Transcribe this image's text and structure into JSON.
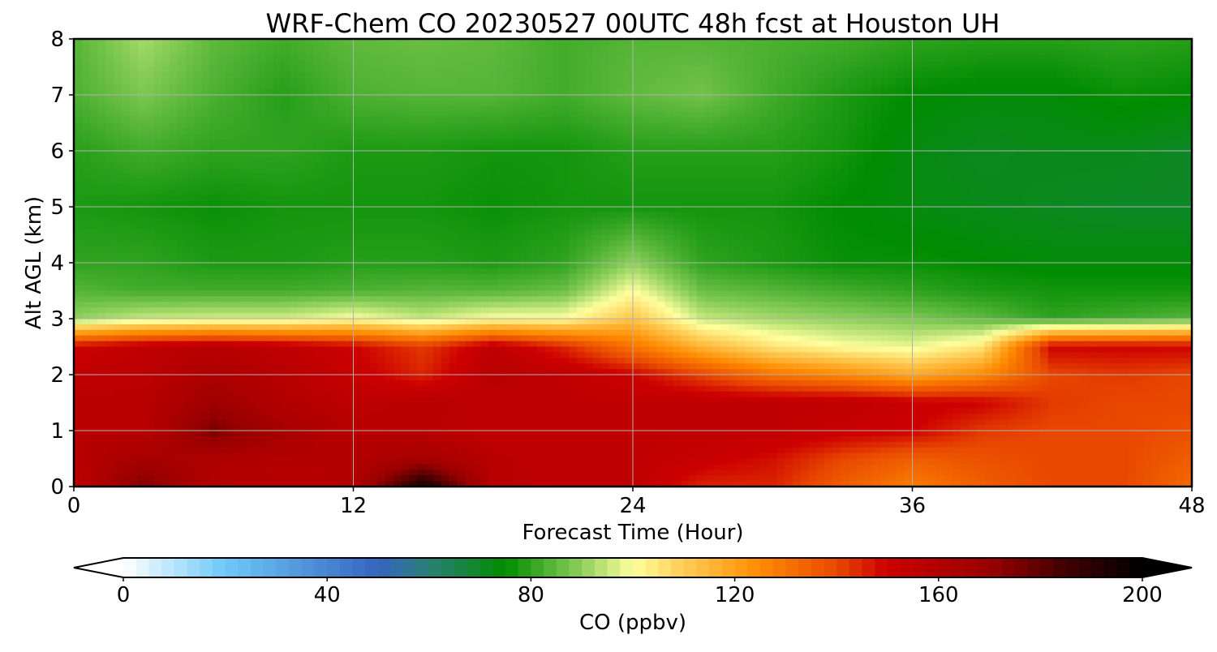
{
  "chart_data": {
    "type": "heatmap",
    "title": "WRF-Chem CO  20230527 00UTC 48h fcst at Houston UH",
    "xlabel": "Forecast Time (Hour)",
    "ylabel": "Alt AGL (km)",
    "xlim": [
      0,
      48
    ],
    "ylim": [
      0,
      8
    ],
    "xticks": [
      0,
      12,
      24,
      36,
      48
    ],
    "yticks": [
      0,
      1,
      2,
      3,
      4,
      5,
      6,
      7,
      8
    ],
    "grid": true,
    "x": [
      0,
      3,
      6,
      9,
      12,
      15,
      18,
      21,
      24,
      27,
      30,
      33,
      36,
      39,
      42,
      45,
      48
    ],
    "y": [
      0,
      0.5,
      1,
      1.5,
      2,
      2.5,
      3,
      3.5,
      4,
      5,
      6,
      7,
      8
    ],
    "z": [
      [
        155,
        175,
        160,
        158,
        160,
        195,
        158,
        155,
        155,
        145,
        145,
        135,
        128,
        135,
        140,
        140,
        132
      ],
      [
        158,
        165,
        162,
        160,
        160,
        165,
        158,
        155,
        155,
        152,
        148,
        140,
        135,
        138,
        140,
        140,
        135
      ],
      [
        158,
        158,
        175,
        165,
        158,
        158,
        155,
        155,
        155,
        155,
        155,
        152,
        150,
        142,
        140,
        140,
        138
      ],
      [
        158,
        158,
        168,
        160,
        156,
        158,
        156,
        155,
        155,
        155,
        155,
        155,
        152,
        150,
        142,
        140,
        140
      ],
      [
        155,
        156,
        162,
        158,
        152,
        145,
        158,
        155,
        150,
        140,
        130,
        125,
        118,
        125,
        140,
        142,
        140
      ],
      [
        150,
        155,
        158,
        155,
        150,
        142,
        155,
        145,
        130,
        115,
        105,
        100,
        98,
        105,
        150,
        150,
        150
      ],
      [
        90,
        95,
        96,
        96,
        100,
        95,
        100,
        100,
        112,
        95,
        92,
        90,
        88,
        85,
        80,
        82,
        84
      ],
      [
        84,
        82,
        82,
        82,
        83,
        84,
        84,
        86,
        100,
        86,
        84,
        82,
        80,
        78,
        77,
        77,
        77
      ],
      [
        80,
        80,
        78,
        78,
        79,
        79,
        78,
        80,
        90,
        80,
        78,
        76,
        76,
        75,
        74,
        74,
        74
      ],
      [
        78,
        77,
        76,
        77,
        77,
        77,
        76,
        77,
        77,
        77,
        77,
        75,
        73,
        72,
        71,
        70,
        70
      ],
      [
        79,
        82,
        80,
        80,
        78,
        78,
        77,
        77,
        79,
        79,
        79,
        77,
        73,
        71,
        72,
        72,
        70
      ],
      [
        83,
        88,
        83,
        79,
        83,
        84,
        84,
        82,
        85,
        87,
        82,
        78,
        75,
        74,
        74,
        76,
        75
      ],
      [
        84,
        92,
        85,
        82,
        85,
        86,
        85,
        82,
        84,
        84,
        83,
        82,
        80,
        79,
        79,
        80,
        79
      ]
    ],
    "colorbar": {
      "label": "CO  (ppbv)",
      "min": 0,
      "max": 200,
      "ticks": [
        0,
        40,
        80,
        120,
        160,
        200
      ],
      "extend": "both",
      "colors": [
        {
          "v": 0,
          "c": "#ffffff"
        },
        {
          "v": 20,
          "c": "#6ec8f8"
        },
        {
          "v": 50,
          "c": "#3565c0"
        },
        {
          "v": 60,
          "c": "#2a7f74"
        },
        {
          "v": 75,
          "c": "#008c00"
        },
        {
          "v": 90,
          "c": "#8fd05c"
        },
        {
          "v": 100,
          "c": "#ffff9e"
        },
        {
          "v": 110,
          "c": "#ffcc55"
        },
        {
          "v": 125,
          "c": "#ff8a00"
        },
        {
          "v": 140,
          "c": "#e84800"
        },
        {
          "v": 150,
          "c": "#cc0000"
        },
        {
          "v": 170,
          "c": "#990000"
        },
        {
          "v": 185,
          "c": "#400000"
        },
        {
          "v": 200,
          "c": "#000000"
        }
      ]
    }
  }
}
